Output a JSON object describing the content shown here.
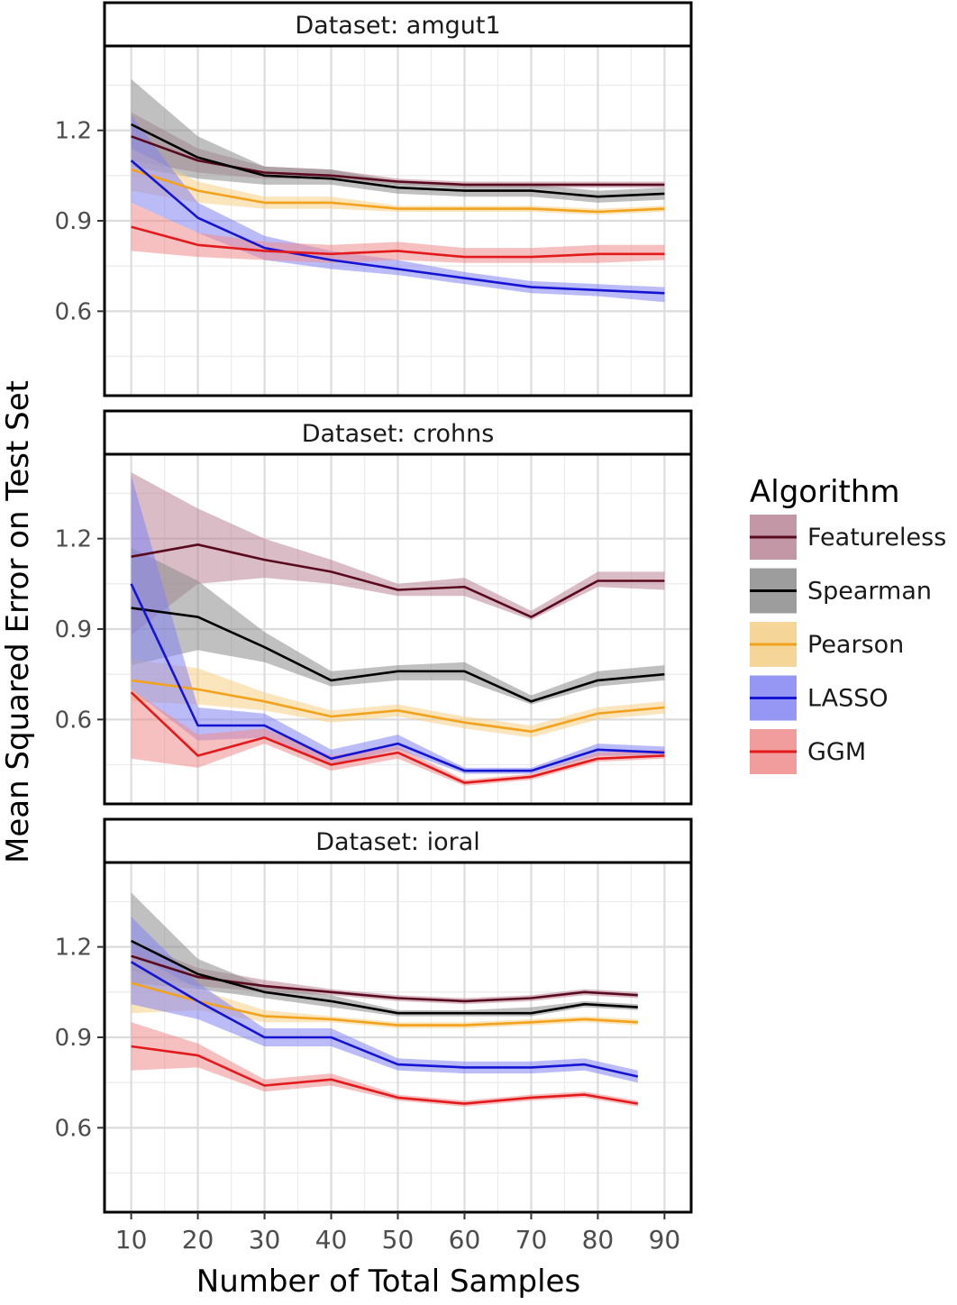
{
  "chart_data": {
    "type": "line",
    "ylabel": "Mean Squared Error on Test Set",
    "xlabel": "Number of Total Samples",
    "x_ticks": [
      10,
      20,
      30,
      40,
      50,
      60,
      70,
      80,
      90
    ],
    "y_ticks": [
      0.6,
      0.9,
      1.2
    ],
    "y_tick_labels": [
      "0.6",
      "0.9",
      "1.2"
    ],
    "xlim": [
      6,
      94
    ],
    "ylim": [
      0.32,
      1.48
    ],
    "legend": {
      "title": "Algorithm",
      "position": "right",
      "entries": [
        "Featureless",
        "Spearman",
        "Pearson",
        "LASSO",
        "GGM"
      ]
    },
    "colors": {
      "Featureless": "#5a0a1e",
      "Featureless_band": "#b98595",
      "Spearman": "#000000",
      "Spearman_band": "#8c8c8c",
      "Pearson": "#f2a21c",
      "Pearson_band": "#f5cf86",
      "LASSO": "#1414d2",
      "LASSO_band": "#8484f2",
      "GGM": "#e31a1c",
      "GGM_band": "#f08c8c"
    },
    "panels": [
      {
        "title": "Dataset: amgut1",
        "x": [
          10,
          20,
          30,
          40,
          50,
          60,
          70,
          80,
          90
        ],
        "series": [
          {
            "name": "Featureless",
            "values": [
              1.18,
              1.1,
              1.06,
              1.05,
              1.03,
              1.02,
              1.02,
              1.02,
              1.02
            ],
            "lower": [
              1.1,
              1.06,
              1.04,
              1.04,
              1.02,
              1.01,
              1.01,
              1.01,
              1.01
            ],
            "upper": [
              1.26,
              1.14,
              1.08,
              1.07,
              1.04,
              1.03,
              1.03,
              1.03,
              1.03
            ]
          },
          {
            "name": "Spearman",
            "values": [
              1.22,
              1.11,
              1.05,
              1.04,
              1.01,
              1.0,
              1.0,
              0.98,
              0.99
            ],
            "lower": [
              1.08,
              1.04,
              1.02,
              1.02,
              0.99,
              0.98,
              0.98,
              0.96,
              0.97
            ],
            "upper": [
              1.37,
              1.18,
              1.08,
              1.07,
              1.03,
              1.02,
              1.02,
              1.0,
              1.01
            ]
          },
          {
            "name": "Pearson",
            "values": [
              1.07,
              1.0,
              0.96,
              0.96,
              0.94,
              0.94,
              0.94,
              0.93,
              0.94
            ],
            "lower": [
              1.0,
              0.96,
              0.94,
              0.94,
              0.93,
              0.93,
              0.93,
              0.92,
              0.93
            ],
            "upper": [
              1.14,
              1.03,
              0.98,
              0.98,
              0.95,
              0.95,
              0.95,
              0.94,
              0.95
            ]
          },
          {
            "name": "LASSO",
            "values": [
              1.1,
              0.91,
              0.81,
              0.77,
              0.74,
              0.71,
              0.68,
              0.67,
              0.66
            ],
            "lower": [
              0.96,
              0.86,
              0.77,
              0.74,
              0.72,
              0.69,
              0.66,
              0.65,
              0.63
            ],
            "upper": [
              1.25,
              0.96,
              0.85,
              0.8,
              0.77,
              0.73,
              0.7,
              0.69,
              0.68
            ]
          },
          {
            "name": "GGM",
            "values": [
              0.88,
              0.82,
              0.8,
              0.79,
              0.8,
              0.78,
              0.78,
              0.79,
              0.79
            ],
            "lower": [
              0.8,
              0.78,
              0.77,
              0.76,
              0.77,
              0.76,
              0.76,
              0.76,
              0.77
            ],
            "upper": [
              0.96,
              0.86,
              0.83,
              0.82,
              0.83,
              0.81,
              0.81,
              0.82,
              0.82
            ]
          }
        ]
      },
      {
        "title": "Dataset: crohns",
        "x": [
          10,
          20,
          30,
          40,
          50,
          60,
          70,
          80,
          90
        ],
        "series": [
          {
            "name": "Featureless",
            "values": [
              1.14,
              1.18,
              1.13,
              1.09,
              1.03,
              1.04,
              0.94,
              1.06,
              1.06
            ],
            "lower": [
              0.88,
              1.05,
              1.07,
              1.05,
              1.01,
              1.01,
              0.93,
              1.04,
              1.03
            ],
            "upper": [
              1.42,
              1.3,
              1.2,
              1.13,
              1.05,
              1.07,
              0.96,
              1.09,
              1.09
            ]
          },
          {
            "name": "Spearman",
            "values": [
              0.97,
              0.94,
              0.84,
              0.73,
              0.76,
              0.76,
              0.66,
              0.73,
              0.75
            ],
            "lower": [
              0.78,
              0.83,
              0.79,
              0.71,
              0.73,
              0.73,
              0.65,
              0.71,
              0.73
            ],
            "upper": [
              1.17,
              1.06,
              0.89,
              0.76,
              0.78,
              0.79,
              0.68,
              0.76,
              0.78
            ]
          },
          {
            "name": "Pearson",
            "values": [
              0.73,
              0.7,
              0.66,
              0.61,
              0.63,
              0.59,
              0.56,
              0.62,
              0.64
            ],
            "lower": [
              0.66,
              0.65,
              0.63,
              0.59,
              0.61,
              0.57,
              0.54,
              0.6,
              0.62
            ],
            "upper": [
              0.8,
              0.77,
              0.69,
              0.63,
              0.65,
              0.61,
              0.58,
              0.64,
              0.66
            ]
          },
          {
            "name": "LASSO",
            "values": [
              1.05,
              0.58,
              0.58,
              0.47,
              0.52,
              0.43,
              0.43,
              0.5,
              0.49
            ],
            "lower": [
              0.7,
              0.53,
              0.54,
              0.45,
              0.5,
              0.42,
              0.42,
              0.48,
              0.48
            ],
            "upper": [
              1.41,
              0.64,
              0.62,
              0.5,
              0.55,
              0.44,
              0.44,
              0.52,
              0.51
            ]
          },
          {
            "name": "GGM",
            "values": [
              0.69,
              0.48,
              0.54,
              0.45,
              0.49,
              0.39,
              0.41,
              0.47,
              0.48
            ],
            "lower": [
              0.47,
              0.44,
              0.52,
              0.43,
              0.47,
              0.38,
              0.4,
              0.46,
              0.47
            ],
            "upper": [
              0.7,
              0.55,
              0.57,
              0.48,
              0.51,
              0.4,
              0.42,
              0.49,
              0.5
            ]
          }
        ]
      },
      {
        "title": "Dataset: ioral",
        "x": [
          10,
          20,
          30,
          40,
          50,
          60,
          70,
          78,
          86
        ],
        "series": [
          {
            "name": "Featureless",
            "values": [
              1.17,
              1.1,
              1.07,
              1.05,
              1.03,
              1.02,
              1.03,
              1.05,
              1.04
            ],
            "lower": [
              1.12,
              1.07,
              1.05,
              1.04,
              1.02,
              1.01,
              1.02,
              1.04,
              1.03
            ],
            "upper": [
              1.22,
              1.13,
              1.09,
              1.06,
              1.04,
              1.03,
              1.04,
              1.06,
              1.05
            ]
          },
          {
            "name": "Spearman",
            "values": [
              1.22,
              1.11,
              1.05,
              1.02,
              0.98,
              0.98,
              0.98,
              1.01,
              1.0
            ],
            "lower": [
              1.08,
              1.06,
              1.03,
              1.0,
              0.97,
              0.97,
              0.97,
              1.0,
              0.99
            ],
            "upper": [
              1.38,
              1.16,
              1.07,
              1.04,
              0.99,
              0.99,
              1.0,
              1.02,
              1.01
            ]
          },
          {
            "name": "Pearson",
            "values": [
              1.08,
              1.02,
              0.97,
              0.96,
              0.94,
              0.94,
              0.95,
              0.96,
              0.95
            ],
            "lower": [
              0.98,
              0.99,
              0.95,
              0.95,
              0.93,
              0.93,
              0.94,
              0.95,
              0.94
            ],
            "upper": [
              1.18,
              1.06,
              0.99,
              0.97,
              0.95,
              0.95,
              0.96,
              0.97,
              0.96
            ]
          },
          {
            "name": "LASSO",
            "values": [
              1.15,
              1.02,
              0.9,
              0.9,
              0.81,
              0.8,
              0.8,
              0.81,
              0.77
            ],
            "lower": [
              1.01,
              0.96,
              0.87,
              0.87,
              0.79,
              0.78,
              0.78,
              0.79,
              0.75
            ],
            "upper": [
              1.3,
              1.08,
              0.93,
              0.93,
              0.83,
              0.82,
              0.82,
              0.83,
              0.79
            ]
          },
          {
            "name": "GGM",
            "values": [
              0.87,
              0.84,
              0.74,
              0.76,
              0.7,
              0.68,
              0.7,
              0.71,
              0.68
            ],
            "lower": [
              0.79,
              0.8,
              0.72,
              0.74,
              0.69,
              0.67,
              0.69,
              0.7,
              0.67
            ],
            "upper": [
              0.95,
              0.88,
              0.76,
              0.78,
              0.71,
              0.69,
              0.71,
              0.72,
              0.69
            ]
          }
        ]
      }
    ]
  }
}
